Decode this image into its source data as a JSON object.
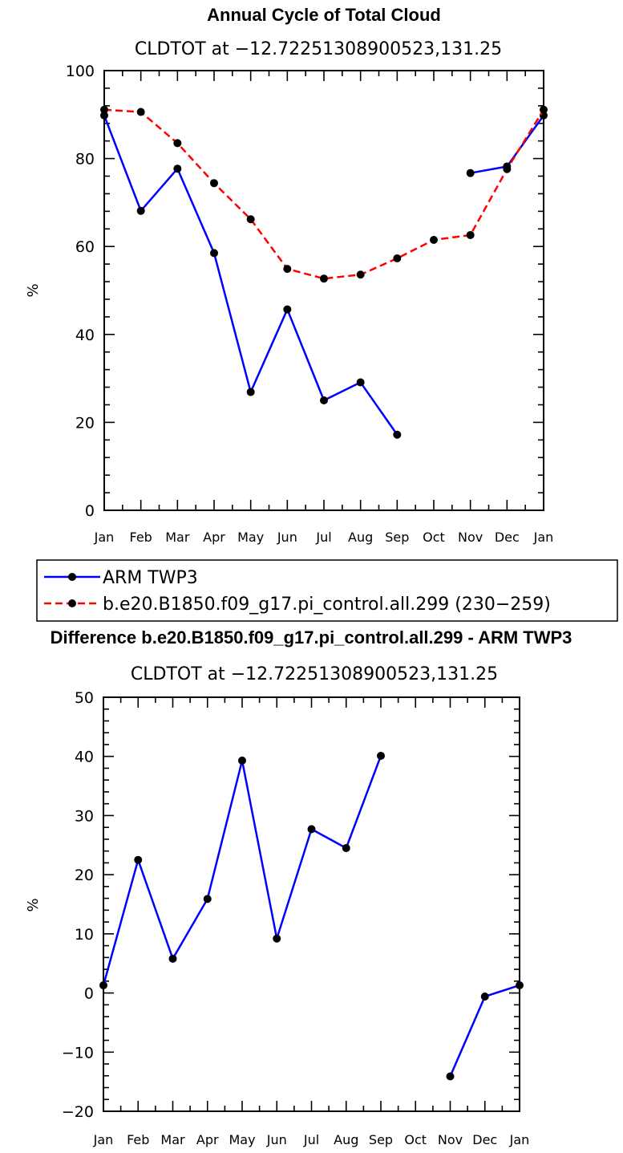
{
  "chart_data": [
    {
      "type": "line",
      "title": "Annual Cycle of Total Cloud",
      "subtitle": "CLDTOT at −12.72251308900523,131.25",
      "ylabel": "%",
      "xlabel": "",
      "ylim": [
        0,
        100
      ],
      "yticks": [
        0,
        20,
        40,
        60,
        80,
        100
      ],
      "categories": [
        "Jan",
        "Feb",
        "Mar",
        "Apr",
        "May",
        "Jun",
        "Jul",
        "Aug",
        "Sep",
        "Oct",
        "Nov",
        "Dec",
        "Jan"
      ],
      "series": [
        {
          "name": "ARM TWP3",
          "color": "#0000ff",
          "dash": "solid",
          "values": [
            89.8,
            68.1,
            77.7,
            58.5,
            26.9,
            45.7,
            25.0,
            29.1,
            17.2,
            null,
            76.7,
            78.2,
            89.8
          ]
        },
        {
          "name": "b.e20.B1850.f09_g17.pi_control.all.299 (230−259)",
          "color": "#ff0000",
          "dash": "dashed",
          "values": [
            91.1,
            90.6,
            83.5,
            74.4,
            66.2,
            54.9,
            52.7,
            53.6,
            57.3,
            61.5,
            62.6,
            77.6,
            91.1
          ]
        }
      ]
    },
    {
      "type": "line",
      "title": "Difference b.e20.B1850.f09_g17.pi_control.all.299 - ARM TWP3",
      "subtitle": "CLDTOT at −12.72251308900523,131.25",
      "ylabel": "%",
      "xlabel": "",
      "ylim": [
        -20,
        50
      ],
      "yticks": [
        -20,
        -10,
        0,
        10,
        20,
        30,
        40,
        50
      ],
      "yticklabels": [
        "−20",
        "−10",
        "0",
        "10",
        "20",
        "30",
        "40",
        "50"
      ],
      "categories": [
        "Jan",
        "Feb",
        "Mar",
        "Apr",
        "May",
        "Jun",
        "Jul",
        "Aug",
        "Sep",
        "Oct",
        "Nov",
        "Dec",
        "Jan"
      ],
      "series": [
        {
          "name": "Difference",
          "color": "#0000ff",
          "dash": "solid",
          "values": [
            1.3,
            22.5,
            5.8,
            15.9,
            39.3,
            9.2,
            27.7,
            24.5,
            40.1,
            null,
            -14.1,
            -0.6,
            1.3
          ]
        }
      ]
    }
  ]
}
